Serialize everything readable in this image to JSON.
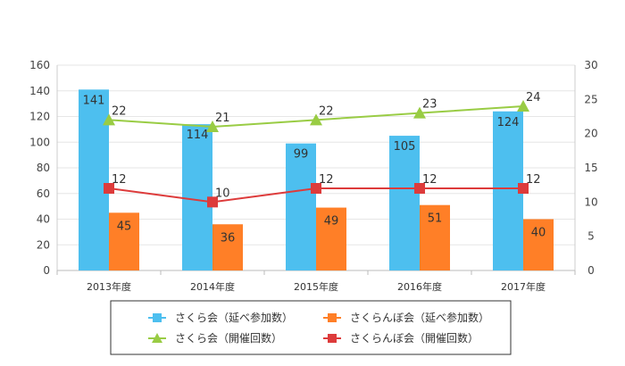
{
  "chart_data": {
    "type": "bar",
    "categories": [
      "2013年度",
      "2014年度",
      "2015年度",
      "2016年度",
      "2017年度"
    ],
    "series": [
      {
        "name": "さくら会（延べ参加数）",
        "kind": "bar",
        "axis": "left",
        "color": "#4dbfef",
        "values": [
          141,
          114,
          99,
          105,
          124
        ],
        "labels": [
          "141",
          "114",
          "99",
          "105",
          "124"
        ]
      },
      {
        "name": "さくらんぼ会（延べ参加数）",
        "kind": "bar",
        "axis": "left",
        "color": "#ff7f27",
        "values": [
          45,
          36,
          49,
          51,
          40
        ],
        "labels": [
          "45",
          "36",
          "49",
          "51",
          "40"
        ]
      },
      {
        "name": "さくら会（開催回数）",
        "kind": "line",
        "marker": "triangle",
        "axis": "right",
        "color": "#99cc44",
        "values": [
          22,
          21,
          22,
          23,
          24
        ],
        "labels": [
          "22",
          "21",
          "22",
          "23",
          "24"
        ]
      },
      {
        "name": "さくらんぼ会（開催回数）",
        "kind": "line",
        "marker": "square",
        "axis": "right",
        "color": "#dd3b3b",
        "values": [
          12,
          10,
          12,
          12,
          12
        ],
        "labels": [
          "12",
          "10",
          "12",
          "12",
          "12"
        ]
      }
    ],
    "y_left": {
      "min": 0,
      "max": 160,
      "step": 20,
      "ticks": [
        "0",
        "20",
        "40",
        "60",
        "80",
        "100",
        "120",
        "140",
        "160"
      ]
    },
    "y_right": {
      "min": 0,
      "max": 30,
      "step": 5,
      "ticks": [
        "0",
        "5",
        "10",
        "15",
        "20",
        "25",
        "30"
      ]
    },
    "grid": true,
    "legend_position": "bottom"
  }
}
